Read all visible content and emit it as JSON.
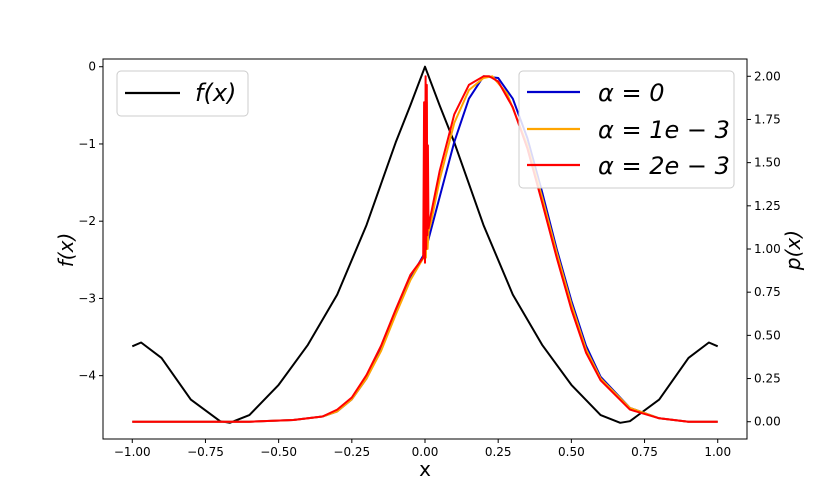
{
  "chart_data": {
    "type": "line",
    "title": "",
    "xlabel": "x",
    "ylabel_left": "f(x)",
    "ylabel_right": "p(x)",
    "xlim": [
      -1.1,
      1.1
    ],
    "ylim_left": [
      -4.82,
      0.1
    ],
    "ylim_right": [
      -0.1,
      2.1
    ],
    "x_ticks": [
      -1.0,
      -0.75,
      -0.5,
      -0.25,
      0.0,
      0.25,
      0.5,
      0.75,
      1.0
    ],
    "x_tick_labels": [
      "−1.00",
      "−0.75",
      "−0.50",
      "−0.25",
      "0.00",
      "0.25",
      "0.50",
      "0.75",
      "1.00"
    ],
    "y_left_ticks": [
      0,
      -1,
      -2,
      -3,
      -4
    ],
    "y_left_tick_labels": [
      "0",
      "−1",
      "−2",
      "−3",
      "−4"
    ],
    "y_right_ticks": [
      0.0,
      0.25,
      0.5,
      0.75,
      1.0,
      1.25,
      1.5,
      1.75,
      2.0
    ],
    "y_right_tick_labels": [
      "0.00",
      "0.25",
      "0.50",
      "0.75",
      "1.00",
      "1.25",
      "1.50",
      "1.75",
      "2.00"
    ],
    "grid": false,
    "legend_left": {
      "placement": "top-left",
      "entries": [
        {
          "label": "f(x)",
          "color": "#000000"
        }
      ]
    },
    "legend_right": {
      "placement": "top-right",
      "entries": [
        {
          "label": "α = 0",
          "color": "#0000cc"
        },
        {
          "label": "α = 1e − 3",
          "color": "#ffa500"
        },
        {
          "label": "α = 2e − 3",
          "color": "#ff0000"
        }
      ]
    },
    "series": [
      {
        "name": "f(x)",
        "axis": "left",
        "color": "#000000",
        "x": [
          -1.0,
          -0.97,
          -0.9,
          -0.8,
          -0.7,
          -0.667,
          -0.6,
          -0.5,
          -0.4,
          -0.3,
          -0.2,
          -0.1,
          -0.05,
          0.0,
          0.05,
          0.1,
          0.2,
          0.3,
          0.4,
          0.5,
          0.6,
          0.667,
          0.7,
          0.8,
          0.9,
          0.97,
          1.0
        ],
        "y": [
          -3.62,
          -3.57,
          -3.77,
          -4.31,
          -4.59,
          -4.61,
          -4.51,
          -4.12,
          -3.6,
          -2.95,
          -2.05,
          -0.98,
          -0.5,
          0.0,
          -0.5,
          -0.98,
          -2.05,
          -2.95,
          -3.6,
          -4.12,
          -4.51,
          -4.61,
          -4.59,
          -4.31,
          -3.77,
          -3.57,
          -3.62
        ]
      },
      {
        "name": "α = 0",
        "axis": "right",
        "color": "#0000cc",
        "x": [
          -1.0,
          -0.6,
          -0.45,
          -0.35,
          -0.3,
          -0.25,
          -0.2,
          -0.15,
          -0.1,
          -0.05,
          0.0,
          0.05,
          0.1,
          0.15,
          0.2,
          0.25,
          0.3,
          0.35,
          0.4,
          0.45,
          0.5,
          0.55,
          0.6,
          0.7,
          0.8,
          0.9,
          1.0
        ],
        "y": [
          0.0,
          0.0,
          0.01,
          0.03,
          0.06,
          0.13,
          0.25,
          0.42,
          0.64,
          0.83,
          0.98,
          1.3,
          1.62,
          1.87,
          2.0,
          1.99,
          1.87,
          1.64,
          1.33,
          1.0,
          0.7,
          0.44,
          0.26,
          0.08,
          0.02,
          0.0,
          0.0
        ]
      },
      {
        "name": "α = 1e − 3",
        "axis": "right",
        "color": "#ffa500",
        "x": [
          -1.0,
          -0.6,
          -0.45,
          -0.35,
          -0.3,
          -0.25,
          -0.2,
          -0.15,
          -0.1,
          -0.05,
          -0.005,
          0.0,
          0.003,
          0.006,
          0.009,
          0.012,
          0.02,
          0.05,
          0.1,
          0.15,
          0.2,
          0.23,
          0.28,
          0.35,
          0.4,
          0.45,
          0.5,
          0.55,
          0.6,
          0.7,
          0.8,
          0.9,
          1.0
        ],
        "y": [
          0.0,
          0.0,
          0.01,
          0.03,
          0.06,
          0.13,
          0.25,
          0.41,
          0.62,
          0.82,
          0.95,
          1.5,
          0.95,
          1.85,
          1.0,
          1.1,
          1.15,
          1.4,
          1.73,
          1.92,
          1.99,
          2.0,
          1.9,
          1.6,
          1.3,
          0.98,
          0.68,
          0.42,
          0.25,
          0.08,
          0.02,
          0.0,
          0.0
        ]
      },
      {
        "name": "α = 2e − 3",
        "axis": "right",
        "color": "#ff0000",
        "x": [
          -1.0,
          -0.6,
          -0.45,
          -0.35,
          -0.3,
          -0.25,
          -0.2,
          -0.15,
          -0.1,
          -0.05,
          -0.006,
          -0.003,
          0.0,
          0.002,
          0.004,
          0.006,
          0.008,
          0.01,
          0.012,
          0.015,
          0.02,
          0.05,
          0.1,
          0.15,
          0.2,
          0.22,
          0.25,
          0.3,
          0.35,
          0.4,
          0.45,
          0.5,
          0.55,
          0.6,
          0.7,
          0.8,
          0.9,
          1.0
        ],
        "y": [
          0.0,
          0.0,
          0.01,
          0.03,
          0.07,
          0.14,
          0.27,
          0.44,
          0.65,
          0.85,
          0.95,
          1.85,
          0.92,
          2.0,
          1.0,
          1.95,
          1.08,
          1.6,
          1.12,
          1.15,
          1.2,
          1.45,
          1.78,
          1.95,
          2.0,
          2.0,
          1.97,
          1.82,
          1.58,
          1.27,
          0.95,
          0.65,
          0.4,
          0.24,
          0.07,
          0.02,
          0.0,
          0.0
        ]
      }
    ]
  }
}
